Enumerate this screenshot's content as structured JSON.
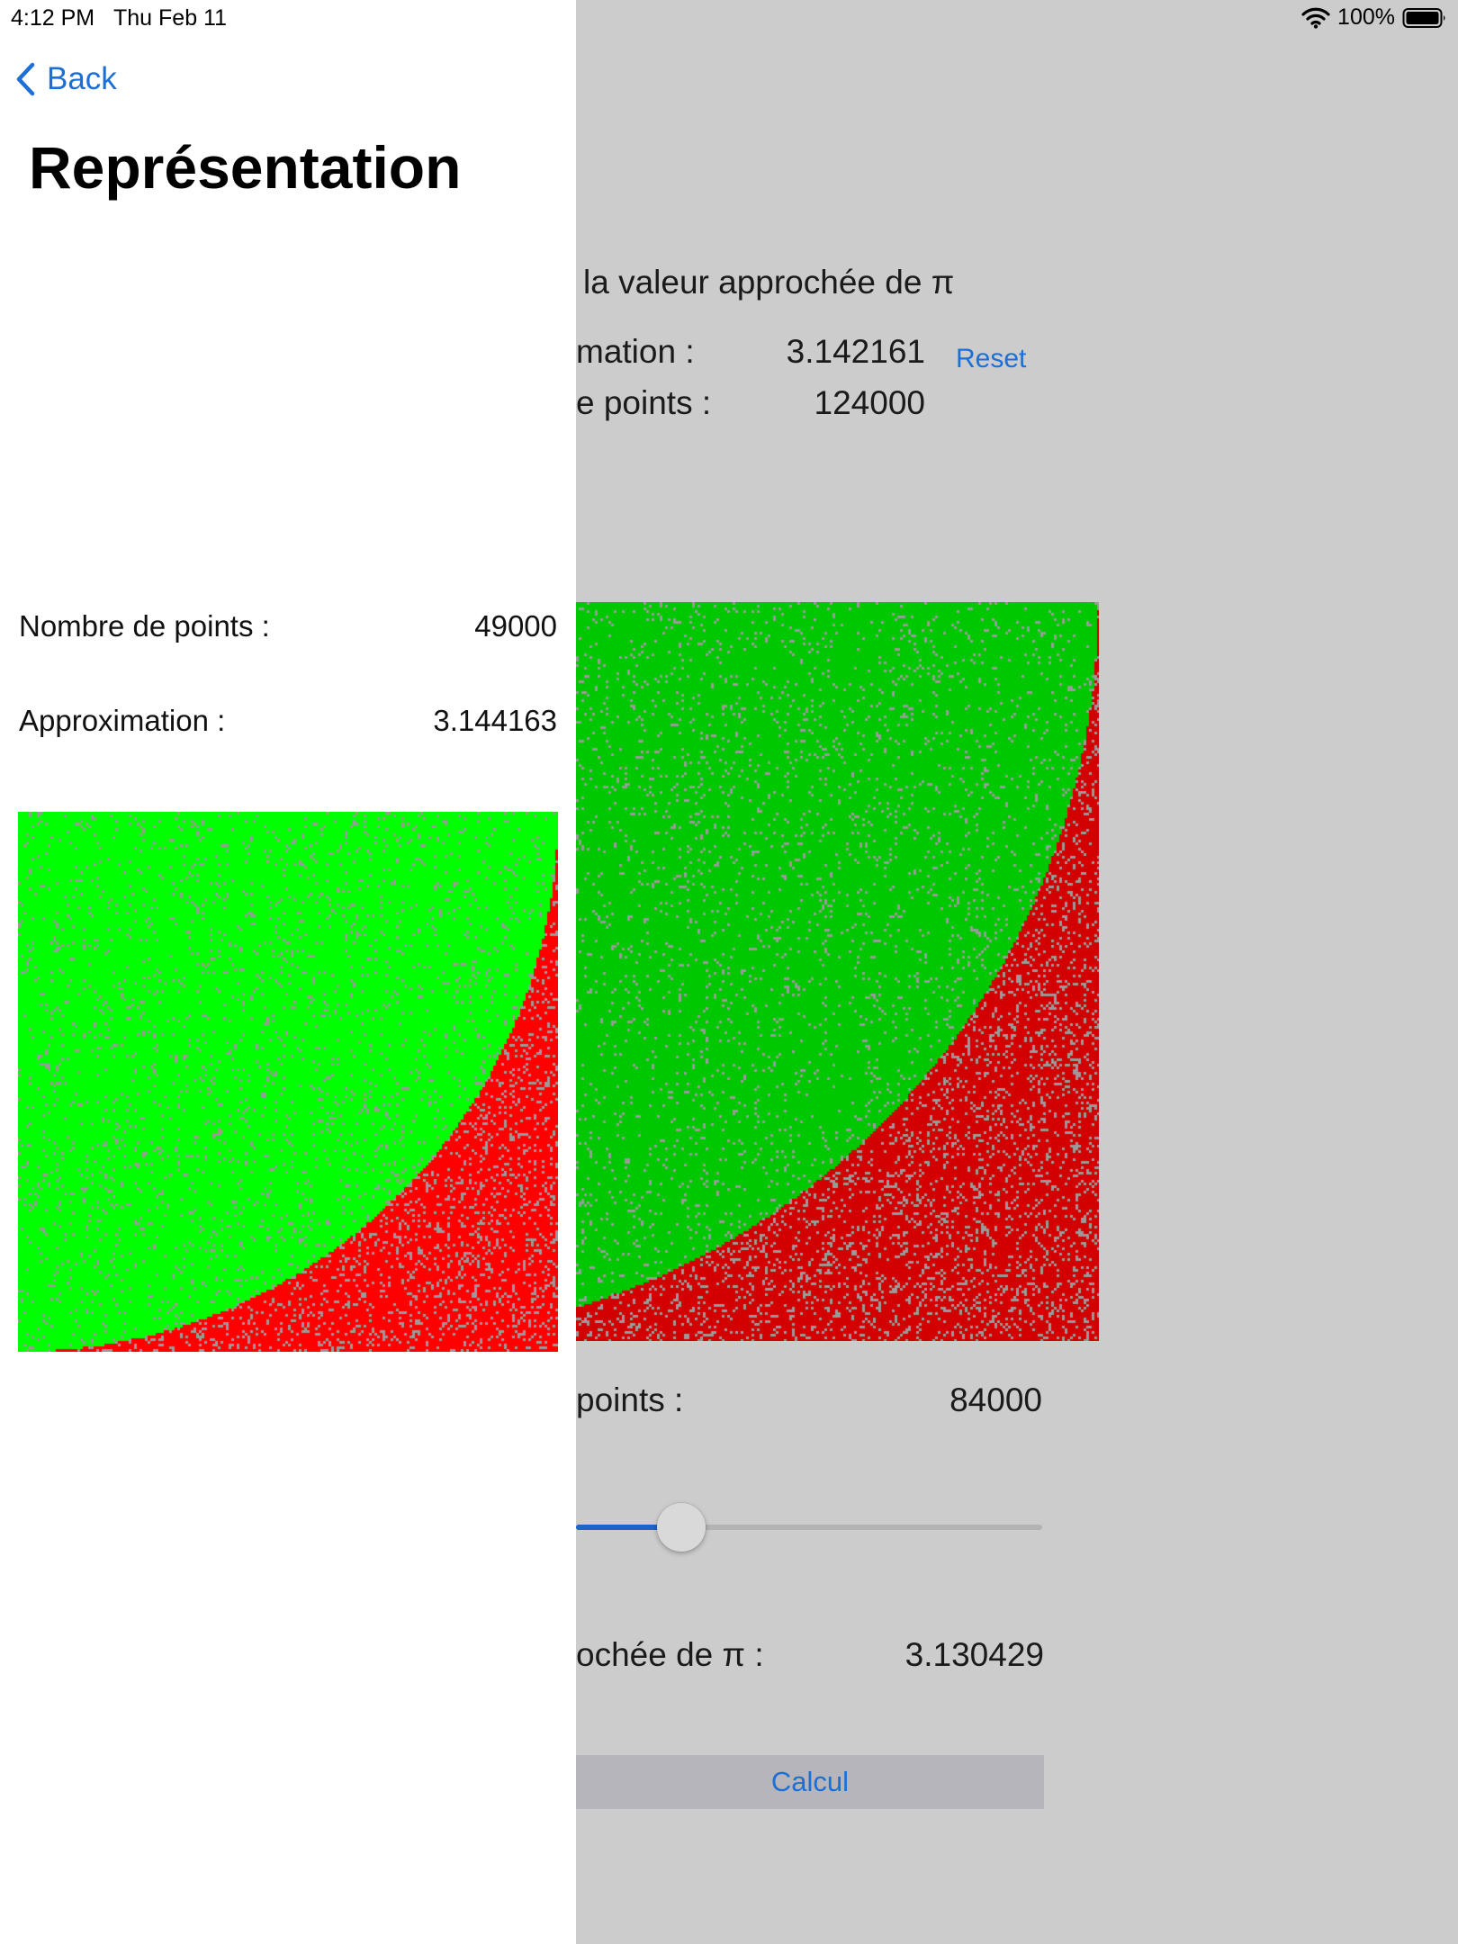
{
  "status_bar": {
    "time": "4:12 PM",
    "date": "Thu Feb 11",
    "battery": "100%",
    "icons": [
      "wifi-icon",
      "battery-icon"
    ]
  },
  "main_screen": {
    "heading": "la valeur approchée de π",
    "approx_label": "mation :",
    "approx_value": "3.142161",
    "reset_label": "Reset",
    "points_label": "e points :",
    "points_value": "124000",
    "sim_points_label": "points :",
    "sim_points_value": "84000",
    "slider_fraction": 0.5,
    "result_label": "ochée de π :",
    "result_value": "3.130429",
    "calc_label": "Calcul",
    "colors": {
      "inside": "#00c800",
      "outside": "#d20000",
      "gap": "#9a9a9a"
    }
  },
  "detail": {
    "back_label": "Back",
    "title": "Représentation",
    "points_label": "Nombre de points :",
    "points_value": "49000",
    "approx_label": "Approximation :",
    "approx_value": "3.144163",
    "colors": {
      "inside": "#00ff00",
      "outside": "#ff0000",
      "gap": "#9a9a9a"
    }
  },
  "accent_color": "#1b6fd6"
}
